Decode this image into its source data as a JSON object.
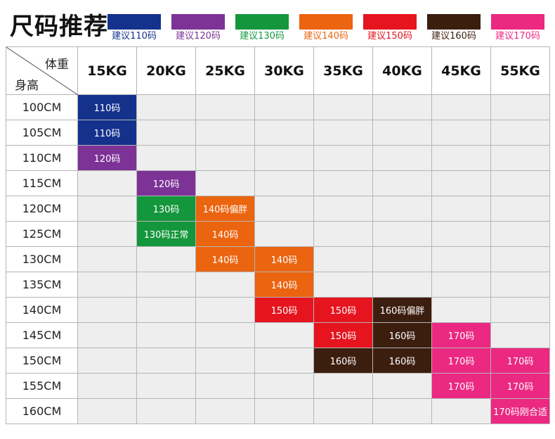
{
  "title": "尺码推荐",
  "legend": [
    {
      "label": "建议110码",
      "color": "#14328c"
    },
    {
      "label": "建议120码",
      "color": "#7d3296"
    },
    {
      "label": "建议130码",
      "color": "#14963c"
    },
    {
      "label": "建议140码",
      "color": "#eb640f"
    },
    {
      "label": "建议150码",
      "color": "#e6141e"
    },
    {
      "label": "建议160码",
      "color": "#3c1e0f"
    },
    {
      "label": "建议170码",
      "color": "#eb2882"
    }
  ],
  "table": {
    "corner_weight": "体重",
    "corner_height": "身高",
    "columns": [
      "15KG",
      "20KG",
      "25KG",
      "30KG",
      "35KG",
      "40KG",
      "45KG",
      "55KG"
    ],
    "rows": [
      {
        "label": "100CM",
        "cells": [
          {
            "text": "110码",
            "size": 110
          },
          null,
          null,
          null,
          null,
          null,
          null,
          null
        ]
      },
      {
        "label": "105CM",
        "cells": [
          {
            "text": "110码",
            "size": 110
          },
          null,
          null,
          null,
          null,
          null,
          null,
          null
        ]
      },
      {
        "label": "110CM",
        "cells": [
          {
            "text": "120码",
            "size": 120
          },
          null,
          null,
          null,
          null,
          null,
          null,
          null
        ]
      },
      {
        "label": "115CM",
        "cells": [
          null,
          {
            "text": "120码",
            "size": 120
          },
          null,
          null,
          null,
          null,
          null,
          null
        ]
      },
      {
        "label": "120CM",
        "cells": [
          null,
          {
            "text": "130码",
            "size": 130
          },
          {
            "text": "140码偏胖",
            "size": 140
          },
          null,
          null,
          null,
          null,
          null
        ]
      },
      {
        "label": "125CM",
        "cells": [
          null,
          {
            "text": "130码正常",
            "size": 130
          },
          {
            "text": "140码",
            "size": 140
          },
          null,
          null,
          null,
          null,
          null
        ]
      },
      {
        "label": "130CM",
        "cells": [
          null,
          null,
          {
            "text": "140码",
            "size": 140
          },
          {
            "text": "140码",
            "size": 140
          },
          null,
          null,
          null,
          null
        ]
      },
      {
        "label": "135CM",
        "cells": [
          null,
          null,
          null,
          {
            "text": "140码",
            "size": 140
          },
          null,
          null,
          null,
          null
        ]
      },
      {
        "label": "140CM",
        "cells": [
          null,
          null,
          null,
          {
            "text": "150码",
            "size": 150
          },
          {
            "text": "150码",
            "size": 150
          },
          {
            "text": "160码偏胖",
            "size": 160
          },
          null,
          null
        ]
      },
      {
        "label": "145CM",
        "cells": [
          null,
          null,
          null,
          null,
          {
            "text": "150码",
            "size": 150
          },
          {
            "text": "160码",
            "size": 160
          },
          {
            "text": "170码",
            "size": 170
          },
          null
        ]
      },
      {
        "label": "150CM",
        "cells": [
          null,
          null,
          null,
          null,
          {
            "text": "160码",
            "size": 160
          },
          {
            "text": "160码",
            "size": 160
          },
          {
            "text": "170码",
            "size": 170
          },
          {
            "text": "170码",
            "size": 170
          }
        ]
      },
      {
        "label": "155CM",
        "cells": [
          null,
          null,
          null,
          null,
          null,
          null,
          {
            "text": "170码",
            "size": 170
          },
          {
            "text": "170码",
            "size": 170
          }
        ]
      },
      {
        "label": "160CM",
        "cells": [
          null,
          null,
          null,
          null,
          null,
          null,
          null,
          {
            "text": "170码刚合适",
            "size": 170
          }
        ]
      }
    ]
  }
}
